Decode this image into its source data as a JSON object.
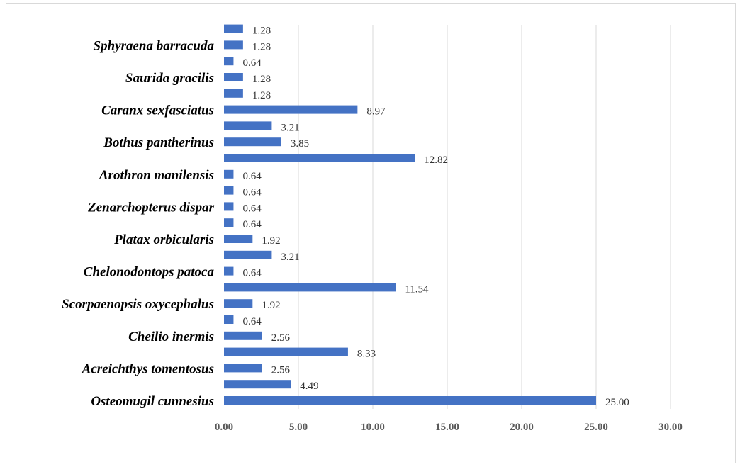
{
  "chart_data": {
    "type": "bar",
    "orientation": "horizontal",
    "bar_color": "#4472c4",
    "grid": true,
    "legend": "none",
    "xlim": [
      0,
      30
    ],
    "x_ticks": [
      "0.00",
      "5.00",
      "10.00",
      "15.00",
      "20.00",
      "25.00",
      "30.00"
    ],
    "bars_bottom_to_top": [
      {
        "label": "Osteomugil cunnesius",
        "value": 25.0,
        "value_label": "25.00"
      },
      {
        "label": "",
        "value": 4.49,
        "value_label": "4.49"
      },
      {
        "label": "Acreichthys tomentosus",
        "value": 2.56,
        "value_label": "2.56"
      },
      {
        "label": "",
        "value": 8.33,
        "value_label": "8.33"
      },
      {
        "label": "Cheilio inermis",
        "value": 2.56,
        "value_label": "2.56"
      },
      {
        "label": "",
        "value": 0.64,
        "value_label": "0.64"
      },
      {
        "label": "Scorpaenopsis oxycephalus",
        "value": 1.92,
        "value_label": "1.92"
      },
      {
        "label": "",
        "value": 11.54,
        "value_label": "11.54"
      },
      {
        "label": "Chelonodontops patoca",
        "value": 0.64,
        "value_label": "0.64"
      },
      {
        "label": "",
        "value": 3.21,
        "value_label": "3.21"
      },
      {
        "label": "Platax orbicularis",
        "value": 1.92,
        "value_label": "1.92"
      },
      {
        "label": "",
        "value": 0.64,
        "value_label": "0.64"
      },
      {
        "label": "Zenarchopterus dispar",
        "value": 0.64,
        "value_label": "0.64"
      },
      {
        "label": "",
        "value": 0.64,
        "value_label": "0.64"
      },
      {
        "label": "Arothron manilensis",
        "value": 0.64,
        "value_label": "0.64"
      },
      {
        "label": "",
        "value": 12.82,
        "value_label": "12.82"
      },
      {
        "label": "Bothus pantherinus",
        "value": 3.85,
        "value_label": "3.85"
      },
      {
        "label": "",
        "value": 3.21,
        "value_label": "3.21"
      },
      {
        "label": "Caranx sexfasciatus",
        "value": 8.97,
        "value_label": "8.97"
      },
      {
        "label": "",
        "value": 1.28,
        "value_label": "1.28"
      },
      {
        "label": "Saurida gracilis",
        "value": 1.28,
        "value_label": "1.28"
      },
      {
        "label": "",
        "value": 0.64,
        "value_label": "0.64"
      },
      {
        "label": "Sphyraena barracuda",
        "value": 1.28,
        "value_label": "1.28"
      },
      {
        "label": "",
        "value": 1.28,
        "value_label": "1.28"
      }
    ]
  }
}
